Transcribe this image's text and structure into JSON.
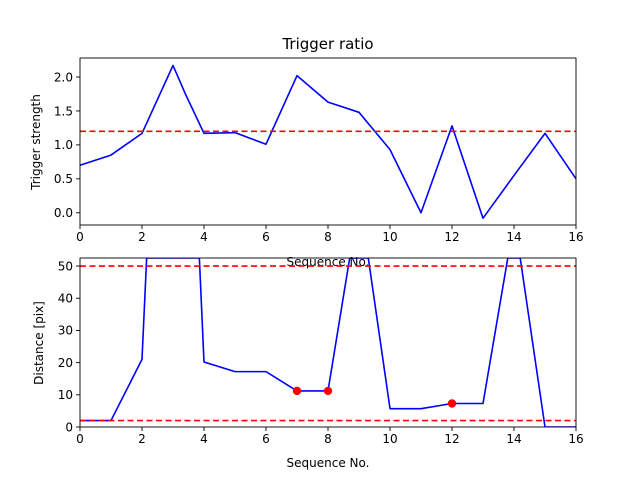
{
  "chart_data": [
    {
      "type": "line",
      "title": "Trigger ratio",
      "xlabel": "Sequence No.",
      "ylabel": "Trigger strength",
      "xlim": [
        0,
        16
      ],
      "ylim": [
        -0.18,
        2.28
      ],
      "xticks": [
        "0",
        "2",
        "4",
        "6",
        "8",
        "10",
        "12",
        "14",
        "16"
      ],
      "yticks": [
        "0.0",
        "0.5",
        "1.0",
        "1.5",
        "2.0"
      ],
      "grid": false,
      "colors": {
        "line": "#0000ff",
        "threshold": "#ff0000"
      },
      "series": [
        {
          "x": [
            0,
            1,
            2,
            3,
            3.4,
            4,
            5,
            6,
            7,
            8,
            9,
            10,
            11,
            12,
            13,
            14,
            15,
            16
          ],
          "y": [
            0.7,
            0.85,
            1.17,
            2.17,
            1.75,
            1.17,
            1.18,
            1.01,
            2.02,
            1.63,
            1.48,
            0.93,
            0.0,
            1.28,
            -0.08,
            0.55,
            1.17,
            0.5
          ]
        }
      ],
      "hlines": [
        1.2
      ]
    },
    {
      "type": "line",
      "title": "",
      "xlabel": "Sequence No.",
      "ylabel": "Distance [pix]",
      "xlim": [
        0,
        16
      ],
      "ylim": [
        0,
        52.5
      ],
      "xticks": [
        "0",
        "2",
        "4",
        "6",
        "8",
        "10",
        "12",
        "14",
        "16"
      ],
      "yticks": [
        "0",
        "10",
        "20",
        "30",
        "40",
        "50"
      ],
      "grid": false,
      "colors": {
        "line": "#0000ff",
        "threshold": "#ff0000",
        "markers": "#ff0000"
      },
      "series": [
        {
          "x": [
            0,
            1,
            2,
            2.15,
            3.85,
            4,
            5,
            6,
            7,
            8,
            8.7,
            9.3,
            10,
            11,
            12,
            13,
            13.8,
            14.2,
            15,
            16
          ],
          "y": [
            2,
            2,
            21,
            52.5,
            52.5,
            20.2,
            17.2,
            17.2,
            11.2,
            11.2,
            52.5,
            52.5,
            5.7,
            5.7,
            7.3,
            7.3,
            52.5,
            52.5,
            0,
            0
          ]
        }
      ],
      "markers": {
        "x": [
          7,
          8,
          12
        ],
        "y": [
          11.2,
          11.2,
          7.3
        ]
      },
      "hlines": [
        50,
        2
      ]
    }
  ]
}
